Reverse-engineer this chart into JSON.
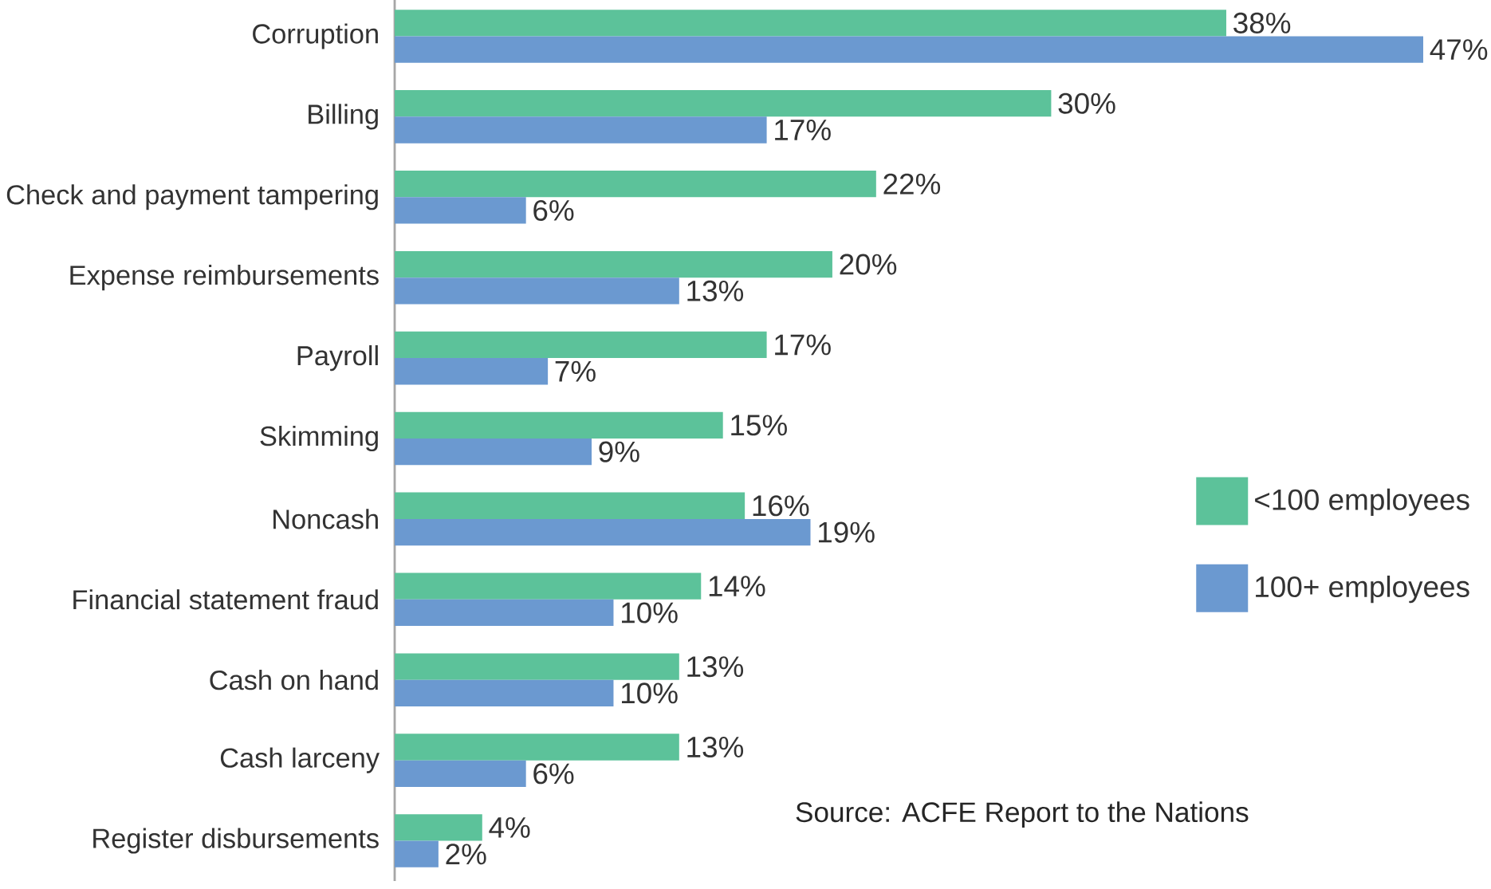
{
  "chart_data": {
    "type": "bar",
    "orientation": "horizontal",
    "categories": [
      "Corruption",
      "Billing",
      "Check and payment tampering",
      "Expense reimbursements",
      "Payroll",
      "Skimming",
      "Noncash",
      "Financial statement fraud",
      "Cash on hand",
      "Cash larceny",
      "Register disbursements"
    ],
    "series": [
      {
        "name": "<100 employees",
        "color": "#5cc29a",
        "values": [
          38,
          30,
          22,
          20,
          17,
          15,
          16,
          14,
          13,
          13,
          4
        ],
        "value_labels": [
          "38%",
          "30%",
          "22%",
          "20%",
          "17%",
          "15%",
          "16%",
          "14%",
          "13%",
          "13%",
          "4%"
        ]
      },
      {
        "name": "100+ employees",
        "color": "#6b99d0",
        "values": [
          47,
          17,
          6,
          13,
          7,
          9,
          19,
          10,
          10,
          6,
          2
        ],
        "value_labels": [
          "47%",
          "17%",
          "6%",
          "13%",
          "7%",
          "9%",
          "19%",
          "10%",
          "10%",
          "6%",
          "2%"
        ]
      }
    ],
    "legend": "right",
    "annotations": [
      "Source:  ACFE Report to the Nations"
    ]
  }
}
